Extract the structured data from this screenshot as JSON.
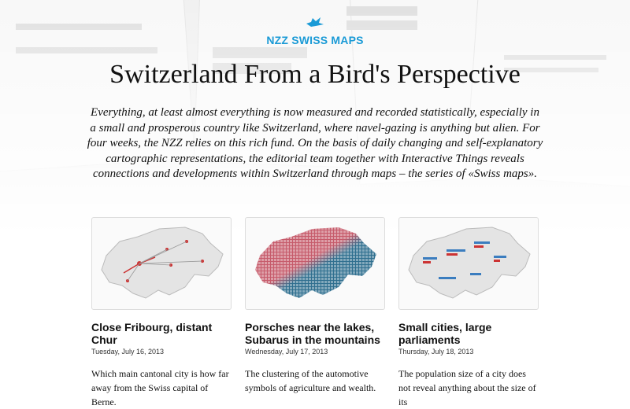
{
  "header": {
    "logo": "NZZ SWISS MAPS",
    "title": "Switzerland From a Bird's Perspective",
    "intro": "Everything, at least almost everything is now measured and recorded statistically, especially in a small and prosperous country like Switzerland, where navel-gazing is anything but alien. For four weeks, the NZZ relies on this rich fund. On the basis of daily changing and self-explanatory cartographic representations, the editorial team together with Interactive Things reveals connections and developments within Switzerland through maps – the series of «Swiss maps»."
  },
  "cards": [
    {
      "title": "Close Fribourg, distant Chur",
      "date": "Tuesday, July 16, 2013",
      "description": "Which main cantonal city is how far away from the Swiss capital of Berne."
    },
    {
      "title": "Porsches near the lakes, Subarus in the mountains",
      "date": "Wednesday, July 17, 2013",
      "description": "The clustering of the automotive symbols of agriculture and wealth."
    },
    {
      "title": "Small cities, large parliaments",
      "date": "Thursday, July 18, 2013",
      "description": "The population size of a city does not reveal anything about the size of its"
    }
  ]
}
